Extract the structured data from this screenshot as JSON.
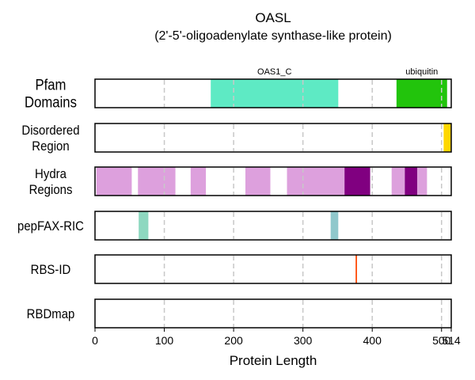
{
  "chart_data": {
    "type": "protein_domain_tracks",
    "title": "OASL",
    "subtitle": "(2'-5'-oligoadenylate synthase-like protein)",
    "xlabel": "Protein Length",
    "xlim": [
      0,
      514
    ],
    "xticks": [
      0,
      100,
      200,
      300,
      400,
      500,
      514
    ],
    "xtick_labels": [
      "0",
      "100",
      "200",
      "300",
      "400",
      "500",
      "514"
    ],
    "grid": "dashed vertical at x ticks",
    "tracks": [
      {
        "label_lines": [
          "Pfam",
          "Domains"
        ],
        "label_size": "large",
        "segments": [
          {
            "start": 167,
            "end": 351,
            "color": "#5EEAC4",
            "label": "OAS1_C"
          },
          {
            "start": 435,
            "end": 508,
            "color": "#22C40C",
            "label": "ubiquitin"
          }
        ]
      },
      {
        "label_lines": [
          "Disordered",
          "Region"
        ],
        "segments": [
          {
            "start": 503,
            "end": 514,
            "color": "#FFD700"
          }
        ]
      },
      {
        "label_lines": [
          "Hydra",
          "Regions"
        ],
        "segments": [
          {
            "start": 2,
            "end": 53,
            "color": "#DDA0DD"
          },
          {
            "start": 62,
            "end": 116,
            "color": "#DDA0DD"
          },
          {
            "start": 138,
            "end": 160,
            "color": "#DDA0DD"
          },
          {
            "start": 217,
            "end": 253,
            "color": "#DDA0DD"
          },
          {
            "start": 277,
            "end": 360,
            "color": "#DDA0DD"
          },
          {
            "start": 360,
            "end": 397,
            "color": "#800080"
          },
          {
            "start": 428,
            "end": 447,
            "color": "#DDA0DD"
          },
          {
            "start": 447,
            "end": 465,
            "color": "#800080"
          },
          {
            "start": 465,
            "end": 479,
            "color": "#DDA0DD"
          }
        ]
      },
      {
        "label_lines": [
          "pepFAX-RIC"
        ],
        "segments": [
          {
            "start": 63,
            "end": 77,
            "color": "#8ED8C0"
          },
          {
            "start": 340,
            "end": 351,
            "color": "#90C8CC"
          }
        ]
      },
      {
        "label_lines": [
          "RBS-ID"
        ],
        "segments": [
          {
            "start": 376,
            "end": 378,
            "color": "#FF4500"
          }
        ]
      },
      {
        "label_lines": [
          "RBDmap"
        ],
        "segments": []
      }
    ]
  }
}
